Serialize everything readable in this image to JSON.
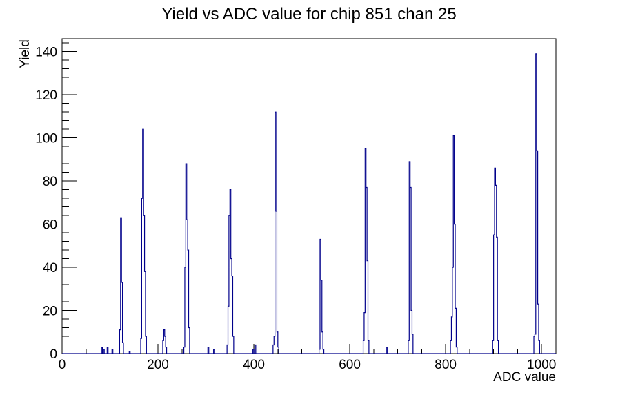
{
  "chart_data": {
    "type": "bar",
    "subtype": "step-histogram",
    "title": "Yield vs ADC value for chip 851 chan 25",
    "xlabel": "ADC value",
    "ylabel": "Yield",
    "xlim": [
      0,
      1030
    ],
    "ylim": [
      0,
      146
    ],
    "x_major_ticks": [
      0,
      200,
      400,
      600,
      800,
      1000
    ],
    "x_minor_step": 50,
    "y_major_ticks": [
      0,
      20,
      40,
      60,
      80,
      100,
      120,
      140
    ],
    "y_minor_step": 4,
    "grid": false,
    "legend": false,
    "background_color": "#ffffff",
    "frame_color": "#000000",
    "line_color": "#00008b",
    "bin_width": 2,
    "bins": [
      [
        82,
        3
      ],
      [
        86,
        2
      ],
      [
        94,
        3
      ],
      [
        104,
        2
      ],
      [
        120,
        11
      ],
      [
        122,
        63
      ],
      [
        124,
        33
      ],
      [
        126,
        5
      ],
      [
        140,
        1
      ],
      [
        164,
        7
      ],
      [
        166,
        72
      ],
      [
        168,
        104
      ],
      [
        170,
        64
      ],
      [
        172,
        38
      ],
      [
        174,
        8
      ],
      [
        210,
        6
      ],
      [
        212,
        11
      ],
      [
        214,
        8
      ],
      [
        216,
        3
      ],
      [
        254,
        3
      ],
      [
        256,
        40
      ],
      [
        258,
        88
      ],
      [
        260,
        62
      ],
      [
        262,
        48
      ],
      [
        264,
        12
      ],
      [
        304,
        3
      ],
      [
        316,
        2
      ],
      [
        344,
        4
      ],
      [
        346,
        22
      ],
      [
        348,
        64
      ],
      [
        350,
        76
      ],
      [
        352,
        44
      ],
      [
        354,
        36
      ],
      [
        356,
        8
      ],
      [
        398,
        2
      ],
      [
        402,
        4
      ],
      [
        440,
        4
      ],
      [
        442,
        8
      ],
      [
        444,
        112
      ],
      [
        446,
        66
      ],
      [
        448,
        10
      ],
      [
        450,
        3
      ],
      [
        536,
        2
      ],
      [
        538,
        53
      ],
      [
        540,
        34
      ],
      [
        542,
        10
      ],
      [
        544,
        2
      ],
      [
        628,
        6
      ],
      [
        630,
        19
      ],
      [
        632,
        95
      ],
      [
        634,
        77
      ],
      [
        636,
        43
      ],
      [
        638,
        6
      ],
      [
        676,
        3
      ],
      [
        722,
        6
      ],
      [
        724,
        89
      ],
      [
        726,
        77
      ],
      [
        728,
        20
      ],
      [
        730,
        9
      ],
      [
        810,
        6
      ],
      [
        812,
        17
      ],
      [
        814,
        40
      ],
      [
        816,
        101
      ],
      [
        818,
        60
      ],
      [
        820,
        21
      ],
      [
        822,
        3
      ],
      [
        898,
        6
      ],
      [
        900,
        55
      ],
      [
        902,
        86
      ],
      [
        904,
        78
      ],
      [
        906,
        54
      ],
      [
        908,
        6
      ],
      [
        984,
        8
      ],
      [
        986,
        9
      ],
      [
        988,
        139
      ],
      [
        990,
        94
      ],
      [
        992,
        23
      ],
      [
        994,
        6
      ]
    ],
    "peak_positions_adc": [
      122,
      168,
      212,
      258,
      350,
      446,
      538,
      632,
      724,
      816,
      902,
      988
    ],
    "peak_heights": [
      63,
      104,
      11,
      88,
      76,
      112,
      53,
      95,
      89,
      101,
      86,
      139
    ]
  }
}
